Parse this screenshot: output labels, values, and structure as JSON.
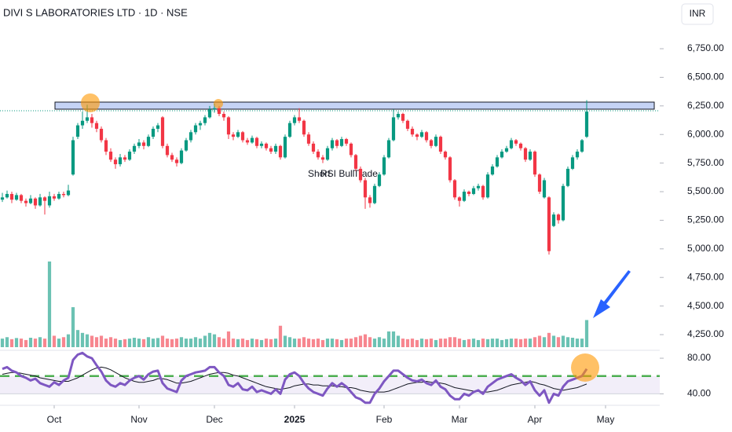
{
  "chart_data": {
    "type": "candlestick",
    "title": "DIVI S LABORATORIES LTD · 1D · NSE",
    "currency": "INR",
    "annotations": [
      "Short",
      "RSI Bull",
      "Trade"
    ],
    "colors": {
      "up": "#089981",
      "down": "#f23645",
      "rsi": "#7e57c2",
      "rsi_ma": "#131722",
      "band": "#4caf50"
    },
    "xlim": [
      -0.5,
      139.5
    ],
    "xticks": [
      {
        "value": 11,
        "label": "Oct"
      },
      {
        "value": 29,
        "label": "Nov"
      },
      {
        "value": 45,
        "label": "Dec"
      },
      {
        "value": 62,
        "label": "2025"
      },
      {
        "value": 81,
        "label": "Feb"
      },
      {
        "value": 97,
        "label": "Mar"
      },
      {
        "value": 113,
        "label": "Apr"
      },
      {
        "value": 128,
        "label": "May"
      }
    ],
    "ylim": [
      4154,
      7176
    ],
    "yticks": [
      {
        "value": 4250,
        "label": "4,250.00"
      },
      {
        "value": 4500,
        "label": "4,500.00"
      },
      {
        "value": 4750,
        "label": "4,750.00"
      },
      {
        "value": 5000,
        "label": "5,000.00"
      },
      {
        "value": 5250,
        "label": "5,250.00"
      },
      {
        "value": 5500,
        "label": "5,500.00"
      },
      {
        "value": 5750,
        "label": "5,750.00"
      },
      {
        "value": 6000,
        "label": "6,000.00"
      },
      {
        "value": 6250,
        "label": "6,250.00"
      },
      {
        "value": 6500,
        "label": "6,500.00"
      },
      {
        "value": 6750,
        "label": "6,750.00"
      }
    ],
    "ohlc": [
      [
        5430,
        5490,
        5410,
        5450
      ],
      [
        5450,
        5510,
        5440,
        5480
      ],
      [
        5480,
        5500,
        5400,
        5430
      ],
      [
        5430,
        5490,
        5420,
        5470
      ],
      [
        5470,
        5480,
        5400,
        5420
      ],
      [
        5420,
        5440,
        5370,
        5400
      ],
      [
        5400,
        5470,
        5390,
        5440
      ],
      [
        5440,
        5450,
        5350,
        5380
      ],
      [
        5380,
        5480,
        5370,
        5450
      ],
      [
        5450,
        5460,
        5300,
        5420
      ],
      [
        5380,
        5500,
        5360,
        5460
      ],
      [
        5460,
        5480,
        5420,
        5440
      ],
      [
        5440,
        5500,
        5430,
        5480
      ],
      [
        5480,
        5500,
        5450,
        5470
      ],
      [
        5470,
        5560,
        5460,
        5510
      ],
      [
        5650,
        5980,
        5640,
        5950
      ],
      [
        5980,
        6100,
        5960,
        6080
      ],
      [
        6080,
        6200,
        6050,
        6120
      ],
      [
        6120,
        6260,
        6100,
        6150
      ],
      [
        6150,
        6180,
        6060,
        6100
      ],
      [
        6100,
        6120,
        6020,
        6050
      ],
      [
        6050,
        6070,
        5930,
        5950
      ],
      [
        5950,
        5970,
        5820,
        5850
      ],
      [
        5850,
        5880,
        5760,
        5780
      ],
      [
        5780,
        5800,
        5700,
        5740
      ],
      [
        5740,
        5830,
        5720,
        5800
      ],
      [
        5800,
        5820,
        5760,
        5780
      ],
      [
        5780,
        5870,
        5770,
        5850
      ],
      [
        5850,
        5920,
        5830,
        5900
      ],
      [
        5900,
        5960,
        5880,
        5930
      ],
      [
        5930,
        5950,
        5870,
        5900
      ],
      [
        5900,
        6000,
        5890,
        5980
      ],
      [
        5980,
        6070,
        5960,
        6050
      ],
      [
        6050,
        6100,
        6020,
        6080
      ],
      [
        6150,
        6160,
        5880,
        5900
      ],
      [
        5900,
        5920,
        5800,
        5820
      ],
      [
        5820,
        5840,
        5760,
        5780
      ],
      [
        5780,
        5800,
        5720,
        5750
      ],
      [
        5750,
        5880,
        5740,
        5860
      ],
      [
        5860,
        5970,
        5850,
        5950
      ],
      [
        5950,
        6040,
        5930,
        6020
      ],
      [
        6020,
        6100,
        6000,
        6080
      ],
      [
        6080,
        6120,
        6040,
        6100
      ],
      [
        6100,
        6170,
        6080,
        6150
      ],
      [
        6150,
        6250,
        6140,
        6220
      ],
      [
        6220,
        6270,
        6190,
        6230
      ],
      [
        6230,
        6250,
        6160,
        6180
      ],
      [
        6180,
        6200,
        6120,
        6150
      ],
      [
        6150,
        6160,
        5960,
        6000
      ],
      [
        6000,
        6020,
        5950,
        5980
      ],
      [
        5980,
        6040,
        5970,
        6020
      ],
      [
        6020,
        6030,
        5930,
        5950
      ],
      [
        5950,
        5970,
        5910,
        5930
      ],
      [
        5930,
        5990,
        5920,
        5970
      ],
      [
        5970,
        5980,
        5880,
        5900
      ],
      [
        5900,
        5940,
        5880,
        5920
      ],
      [
        5920,
        5930,
        5860,
        5880
      ],
      [
        5880,
        5900,
        5830,
        5850
      ],
      [
        5850,
        5920,
        5830,
        5900
      ],
      [
        5900,
        5910,
        5780,
        5800
      ],
      [
        5800,
        6000,
        5790,
        5980
      ],
      [
        5980,
        6120,
        5970,
        6100
      ],
      [
        6100,
        6170,
        6080,
        6150
      ],
      [
        6150,
        6230,
        6100,
        6120
      ],
      [
        6120,
        6130,
        5980,
        6000
      ],
      [
        6000,
        6020,
        5900,
        5920
      ],
      [
        5920,
        5940,
        5830,
        5850
      ],
      [
        5850,
        5870,
        5780,
        5800
      ],
      [
        5800,
        5820,
        5750,
        5780
      ],
      [
        5780,
        5900,
        5770,
        5880
      ],
      [
        5880,
        5970,
        5860,
        5950
      ],
      [
        5950,
        5960,
        5880,
        5900
      ],
      [
        5900,
        5980,
        5890,
        5960
      ],
      [
        5960,
        5970,
        5900,
        5920
      ],
      [
        5920,
        5930,
        5800,
        5820
      ],
      [
        5820,
        5830,
        5680,
        5700
      ],
      [
        5700,
        5720,
        5580,
        5600
      ],
      [
        5600,
        5620,
        5350,
        5450
      ],
      [
        5450,
        5470,
        5360,
        5400
      ],
      [
        5400,
        5570,
        5390,
        5550
      ],
      [
        5550,
        5670,
        5540,
        5650
      ],
      [
        5650,
        5820,
        5640,
        5800
      ],
      [
        5800,
        5970,
        5790,
        5950
      ],
      [
        5950,
        6220,
        5940,
        6150
      ],
      [
        6150,
        6200,
        6130,
        6180
      ],
      [
        6180,
        6190,
        6100,
        6120
      ],
      [
        6120,
        6130,
        6030,
        6050
      ],
      [
        6050,
        6070,
        5980,
        6000
      ],
      [
        6000,
        6010,
        5950,
        5980
      ],
      [
        5980,
        6040,
        5970,
        6020
      ],
      [
        6020,
        6030,
        5930,
        5950
      ],
      [
        5950,
        5960,
        5880,
        5900
      ],
      [
        5900,
        6000,
        5890,
        5980
      ],
      [
        5980,
        5990,
        5830,
        5850
      ],
      [
        5850,
        5860,
        5780,
        5800
      ],
      [
        5800,
        5810,
        5580,
        5600
      ],
      [
        5600,
        5610,
        5430,
        5450
      ],
      [
        5450,
        5460,
        5370,
        5420
      ],
      [
        5420,
        5520,
        5410,
        5500
      ],
      [
        5500,
        5510,
        5460,
        5480
      ],
      [
        5480,
        5550,
        5470,
        5530
      ],
      [
        5530,
        5570,
        5510,
        5550
      ],
      [
        5550,
        5560,
        5430,
        5450
      ],
      [
        5450,
        5670,
        5440,
        5650
      ],
      [
        5650,
        5740,
        5640,
        5720
      ],
      [
        5720,
        5820,
        5710,
        5800
      ],
      [
        5800,
        5870,
        5790,
        5850
      ],
      [
        5850,
        5900,
        5840,
        5880
      ],
      [
        5880,
        5970,
        5870,
        5950
      ],
      [
        5950,
        5960,
        5900,
        5920
      ],
      [
        5920,
        5930,
        5860,
        5880
      ],
      [
        5880,
        5890,
        5760,
        5780
      ],
      [
        5780,
        5870,
        5770,
        5850
      ],
      [
        5850,
        5860,
        5630,
        5650
      ],
      [
        5650,
        5660,
        5480,
        5500
      ],
      [
        5450,
        5620,
        5440,
        5600
      ],
      [
        5450,
        5460,
        4950,
        4980
      ],
      [
        5200,
        5320,
        5190,
        5300
      ],
      [
        5300,
        5310,
        5220,
        5250
      ],
      [
        5250,
        5570,
        5240,
        5550
      ],
      [
        5550,
        5720,
        5540,
        5700
      ],
      [
        5700,
        5820,
        5690,
        5800
      ],
      [
        5800,
        5870,
        5780,
        5850
      ],
      [
        5850,
        5960,
        5840,
        5950
      ],
      [
        5980,
        6300,
        5970,
        6200
      ]
    ],
    "volume": [
      0.3,
      0.35,
      0.28,
      0.32,
      0.3,
      0.25,
      0.33,
      0.3,
      0.35,
      0.3,
      3.0,
      0.4,
      0.3,
      0.35,
      0.45,
      1.4,
      0.6,
      0.5,
      0.45,
      0.4,
      0.35,
      0.4,
      0.3,
      0.35,
      0.3,
      0.25,
      0.28,
      0.3,
      0.33,
      0.3,
      0.28,
      0.35,
      0.3,
      0.32,
      0.4,
      0.3,
      0.28,
      0.3,
      0.35,
      0.3,
      0.3,
      0.35,
      0.3,
      0.4,
      0.5,
      0.45,
      0.35,
      0.3,
      0.55,
      0.3,
      0.28,
      0.3,
      0.25,
      0.3,
      0.28,
      0.25,
      0.3,
      0.28,
      0.3,
      0.75,
      0.4,
      0.35,
      0.3,
      0.3,
      0.35,
      0.3,
      0.28,
      0.3,
      0.25,
      0.3,
      0.3,
      0.28,
      0.25,
      0.3,
      0.3,
      0.35,
      0.4,
      0.45,
      0.35,
      0.3,
      0.35,
      0.3,
      0.55,
      0.55,
      0.4,
      0.3,
      0.28,
      0.3,
      0.25,
      0.3,
      0.28,
      0.3,
      0.25,
      0.3,
      0.3,
      0.35,
      0.35,
      0.3,
      0.25,
      0.28,
      0.3,
      0.25,
      0.3,
      0.28,
      0.3,
      0.3,
      0.25,
      0.28,
      0.3,
      0.3,
      0.28,
      0.3,
      0.3,
      0.35,
      0.4,
      0.35,
      0.5,
      0.4,
      0.35,
      0.4,
      0.35,
      0.33,
      0.3,
      0.3,
      0.95
    ],
    "volume_lim": [
      0,
      3.3
    ],
    "rsi": [
      68,
      70,
      66,
      64,
      60,
      58,
      55,
      57,
      52,
      50,
      48,
      53,
      50,
      55,
      58,
      78,
      84,
      86,
      82,
      80,
      72,
      65,
      55,
      50,
      48,
      52,
      50,
      55,
      58,
      60,
      56,
      62,
      65,
      66,
      52,
      46,
      44,
      42,
      55,
      60,
      62,
      64,
      65,
      66,
      70,
      70,
      64,
      60,
      50,
      48,
      52,
      45,
      44,
      48,
      42,
      44,
      42,
      40,
      45,
      40,
      56,
      62,
      64,
      60,
      52,
      46,
      42,
      40,
      38,
      46,
      52,
      48,
      52,
      48,
      42,
      36,
      34,
      30,
      30,
      40,
      46,
      54,
      60,
      66,
      66,
      62,
      58,
      55,
      54,
      56,
      52,
      50,
      55,
      48,
      45,
      38,
      34,
      34,
      40,
      38,
      42,
      44,
      40,
      48,
      52,
      56,
      58,
      60,
      62,
      58,
      55,
      50,
      54,
      44,
      38,
      44,
      30,
      40,
      38,
      48,
      54,
      56,
      58,
      60,
      68
    ],
    "rsi_ma": [
      62,
      63,
      64,
      64,
      63,
      62,
      61,
      60,
      58,
      57,
      56,
      55,
      54,
      54,
      54,
      56,
      58,
      61,
      64,
      67,
      69,
      70,
      69,
      67,
      64,
      61,
      58,
      56,
      54,
      53,
      53,
      54,
      55,
      57,
      57,
      56,
      54,
      52,
      52,
      53,
      54,
      56,
      58,
      60,
      62,
      63,
      64,
      64,
      63,
      61,
      60,
      58,
      56,
      54,
      52,
      50,
      48,
      47,
      46,
      45,
      46,
      47,
      49,
      50,
      51,
      51,
      50,
      50,
      49,
      49,
      49,
      48,
      48,
      47,
      47,
      46,
      44,
      43,
      42,
      42,
      42,
      42,
      43,
      45,
      47,
      49,
      51,
      52,
      53,
      53,
      54,
      53,
      53,
      52,
      51,
      49,
      47,
      46,
      45,
      44,
      43,
      43,
      42,
      42,
      43,
      44,
      46,
      48,
      50,
      51,
      52,
      53,
      54,
      53,
      51,
      50,
      48,
      46,
      45,
      44,
      45,
      46,
      47,
      49,
      51
    ],
    "rsi_ylim": [
      28,
      88
    ],
    "rsi_yticks": [
      {
        "value": 40,
        "label": "40.00"
      },
      {
        "value": 80,
        "label": "80.00"
      }
    ],
    "rsi_band": [
      40,
      60
    ]
  }
}
